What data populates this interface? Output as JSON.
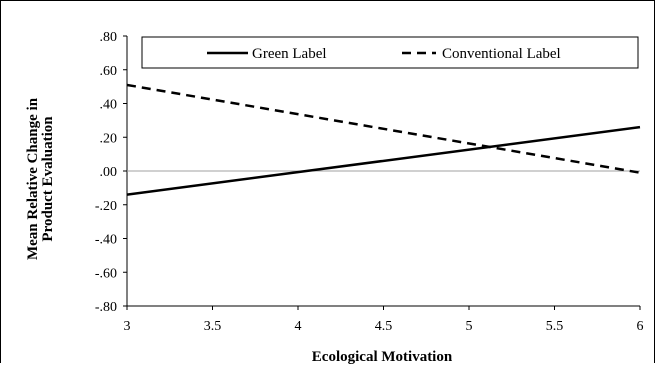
{
  "chart_data": {
    "type": "line",
    "xlabel": "Ecological Motivation",
    "ylabel_line1": "Mean Relative Change in",
    "ylabel_line2": "Product Evaluation",
    "xlim": [
      3,
      6
    ],
    "ylim": [
      -0.8,
      0.8
    ],
    "x_ticks": [
      "3",
      "3.5",
      "4",
      "4.5",
      "5",
      "5.5",
      "6"
    ],
    "y_ticks": [
      ".80",
      ".60",
      ".40",
      ".20",
      ".00",
      "-.20",
      "-.40",
      "-.60",
      "-.80"
    ],
    "legend_position": "top",
    "grid": false,
    "reference_line_y": 0,
    "series": [
      {
        "name": "Green Label",
        "style": "solid",
        "x": [
          3,
          6
        ],
        "y": [
          -0.14,
          0.26
        ]
      },
      {
        "name": "Conventional Label",
        "style": "dashed",
        "x": [
          3,
          6
        ],
        "y": [
          0.51,
          -0.01
        ]
      }
    ]
  }
}
